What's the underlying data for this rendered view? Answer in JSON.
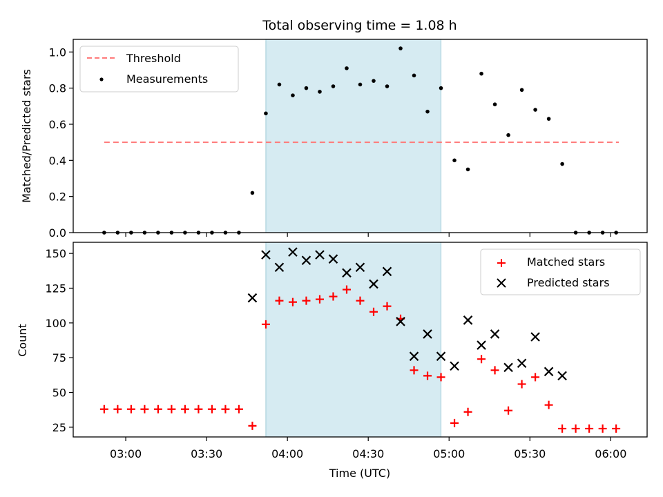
{
  "chart_data": [
    {
      "type": "scatter",
      "title": "Total observing time = 1.08 h",
      "ylabel": "Matched/Predicted stars",
      "xlabel": "",
      "ylim": [
        0,
        1.07
      ],
      "yticks": [
        0.0,
        0.2,
        0.4,
        0.6,
        0.8,
        1.0
      ],
      "ytick_labels": [
        "0.0",
        "0.2",
        "0.4",
        "0.6",
        "0.8",
        "1.0"
      ],
      "shaded_interval": [
        "03:52",
        "04:57"
      ],
      "series": [
        {
          "name": "Threshold",
          "style": "dashed-line",
          "color": "#ff7a7a",
          "x": [
            "02:52",
            "06:03"
          ],
          "y": [
            0.5,
            0.5
          ]
        },
        {
          "name": "Measurements",
          "style": "dot",
          "color": "#000000",
          "x": [
            "02:52",
            "02:57",
            "03:02",
            "03:07",
            "03:12",
            "03:17",
            "03:22",
            "03:27",
            "03:32",
            "03:37",
            "03:42",
            "03:47",
            "03:52",
            "03:57",
            "04:02",
            "04:07",
            "04:12",
            "04:17",
            "04:22",
            "04:27",
            "04:32",
            "04:37",
            "04:42",
            "04:47",
            "04:52",
            "04:57",
            "05:02",
            "05:07",
            "05:12",
            "05:17",
            "05:22",
            "05:27",
            "05:32",
            "05:37",
            "05:42",
            "05:47",
            "05:52",
            "05:57",
            "06:02"
          ],
          "y": [
            0,
            0,
            0,
            0,
            0,
            0,
            0,
            0,
            0,
            0,
            0,
            0.22,
            0.66,
            0.82,
            0.76,
            0.8,
            0.78,
            0.81,
            0.91,
            0.82,
            0.84,
            0.81,
            1.02,
            0.87,
            0.67,
            0.8,
            0.4,
            0.35,
            0.88,
            0.71,
            0.54,
            0.79,
            0.68,
            0.63,
            0.38,
            0,
            0,
            0,
            0
          ]
        }
      ],
      "grid": false,
      "legend": "upper left"
    },
    {
      "type": "scatter",
      "title": "",
      "ylabel": "Count",
      "xlabel": "Time (UTC)",
      "ylim": [
        18,
        158
      ],
      "yticks": [
        25,
        50,
        75,
        100,
        125,
        150
      ],
      "ytick_labels": [
        "25",
        "50",
        "75",
        "100",
        "125",
        "150"
      ],
      "xticks": [
        "03:00",
        "03:30",
        "04:00",
        "04:30",
        "05:00",
        "05:30",
        "06:00"
      ],
      "shaded_interval": [
        "03:52",
        "04:57"
      ],
      "series": [
        {
          "name": "Matched stars",
          "marker": "plus",
          "color": "#ff0000",
          "x": [
            "02:52",
            "02:57",
            "03:02",
            "03:07",
            "03:12",
            "03:17",
            "03:22",
            "03:27",
            "03:32",
            "03:37",
            "03:42",
            "03:47",
            "03:52",
            "03:57",
            "04:02",
            "04:07",
            "04:12",
            "04:17",
            "04:22",
            "04:27",
            "04:32",
            "04:37",
            "04:42",
            "04:47",
            "04:52",
            "04:57",
            "05:02",
            "05:07",
            "05:12",
            "05:17",
            "05:22",
            "05:27",
            "05:32",
            "05:37",
            "05:42",
            "05:47",
            "05:52",
            "05:57",
            "06:02"
          ],
          "y": [
            38,
            38,
            38,
            38,
            38,
            38,
            38,
            38,
            38,
            38,
            38,
            26,
            99,
            116,
            115,
            116,
            117,
            119,
            124,
            116,
            108,
            112,
            103,
            66,
            62,
            61,
            28,
            36,
            74,
            66,
            37,
            56,
            61,
            41,
            24,
            24,
            24,
            24,
            24
          ]
        },
        {
          "name": "Predicted stars",
          "marker": "x",
          "color": "#000000",
          "x": [
            "03:47",
            "03:52",
            "03:57",
            "04:02",
            "04:07",
            "04:12",
            "04:17",
            "04:22",
            "04:27",
            "04:32",
            "04:37",
            "04:42",
            "04:47",
            "04:52",
            "04:57",
            "05:02",
            "05:07",
            "05:12",
            "05:17",
            "05:22",
            "05:27",
            "05:32",
            "05:37",
            "05:42"
          ],
          "y": [
            118,
            149,
            140,
            151,
            145,
            149,
            146,
            136,
            140,
            128,
            137,
            101,
            76,
            92,
            76,
            69,
            102,
            84,
            92,
            68,
            71,
            90,
            65,
            62
          ]
        }
      ],
      "grid": false,
      "legend": "upper right"
    }
  ]
}
